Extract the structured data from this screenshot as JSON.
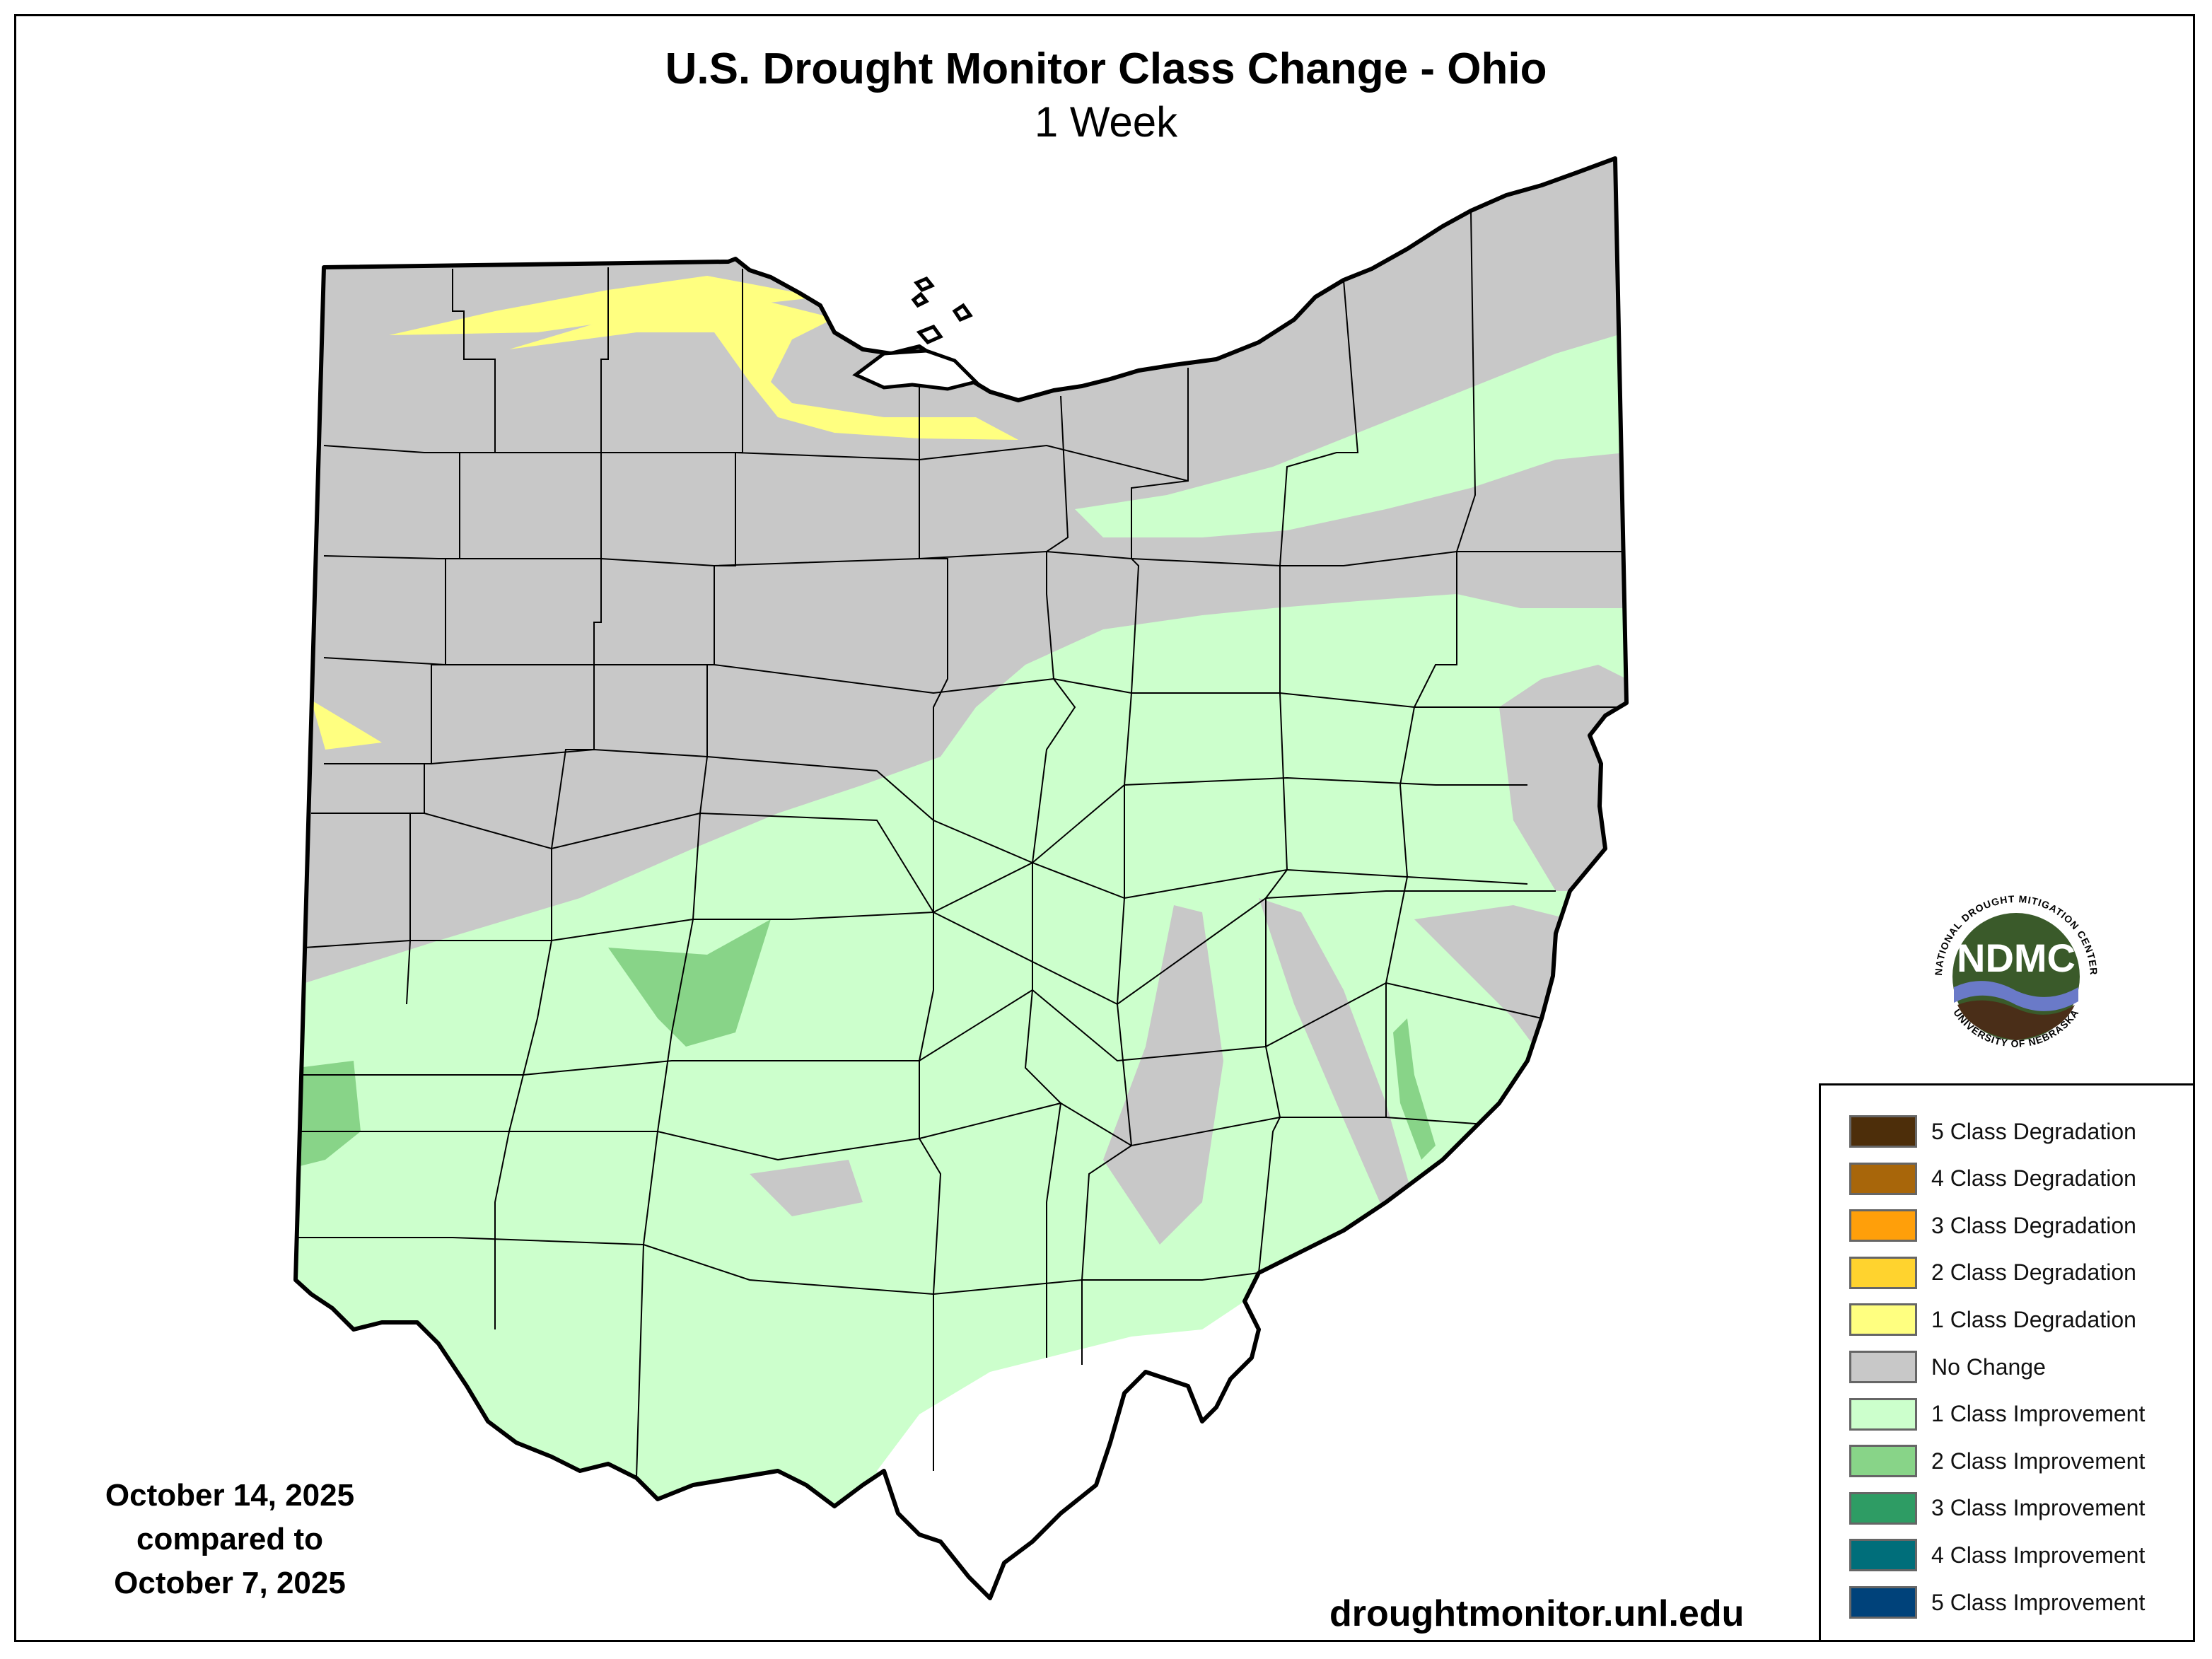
{
  "title": "U.S. Drought Monitor Class Change - Ohio",
  "subtitle": "1 Week",
  "dates": {
    "line1": "October 14, 2025",
    "line2": "compared to",
    "line3": "October 7, 2025"
  },
  "url": "droughtmonitor.unl.edu",
  "logo": {
    "text": "NDMC",
    "ring_top": "NATIONAL DROUGHT MITIGATION CENTER",
    "ring_bottom": "UNIVERSITY OF NEBRASKA"
  },
  "legend": {
    "items": [
      {
        "label": "5 Class Degradation",
        "color": "#4d2e0a"
      },
      {
        "label": "4 Class Degradation",
        "color": "#a8660a"
      },
      {
        "label": "3 Class Degradation",
        "color": "#ff9f0a"
      },
      {
        "label": "2 Class Degradation",
        "color": "#ffd32e"
      },
      {
        "label": "1 Class Degradation",
        "color": "#ffff80"
      },
      {
        "label": "No Change",
        "color": "#c8c8c8"
      },
      {
        "label": "1 Class Improvement",
        "color": "#ccffcc"
      },
      {
        "label": "2 Class Improvement",
        "color": "#88d488"
      },
      {
        "label": "3 Class Improvement",
        "color": "#2e9c64"
      },
      {
        "label": "4 Class Improvement",
        "color": "#006e7a"
      },
      {
        "label": "5 Class Improvement",
        "color": "#00427a"
      }
    ]
  },
  "map_colors": {
    "no_change": "#c8c8c8",
    "improve1": "#ccffcc",
    "improve2": "#88d488",
    "degrade1": "#ffff80",
    "outside": "#ffffff"
  }
}
